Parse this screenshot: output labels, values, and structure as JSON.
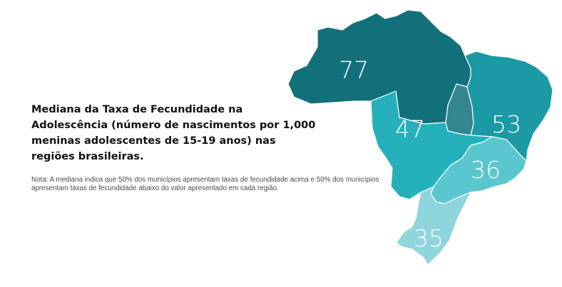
{
  "title": "Mediana da Taxa de Fecundidade na Adolescência (número de nascimentos por 1,000 meninas adolescentes de 15-19 anos) nas regiões brasileiras.",
  "note": "Nota: A mediana indica que 50% dos municípios apresentam taxas de fecundidade acima e 50% dos municípios apresentam taxas de fecundidade abaixo do valor apresentado em cada região.",
  "regions": [
    {
      "id": "norte",
      "value": "77",
      "color": "#12707b"
    },
    {
      "id": "nordeste",
      "value": "53",
      "color": "#1b9aa6"
    },
    {
      "id": "centro-oeste",
      "value": "47",
      "color": "#25b0bc"
    },
    {
      "id": "sudeste",
      "value": "36",
      "color": "#5ac7ce"
    },
    {
      "id": "sul",
      "value": "35",
      "color": "#8fd6dc"
    }
  ],
  "colors": {
    "background": "#ffffff",
    "border": "#ffffff",
    "title": "#111111",
    "note": "#4a4a4a"
  }
}
